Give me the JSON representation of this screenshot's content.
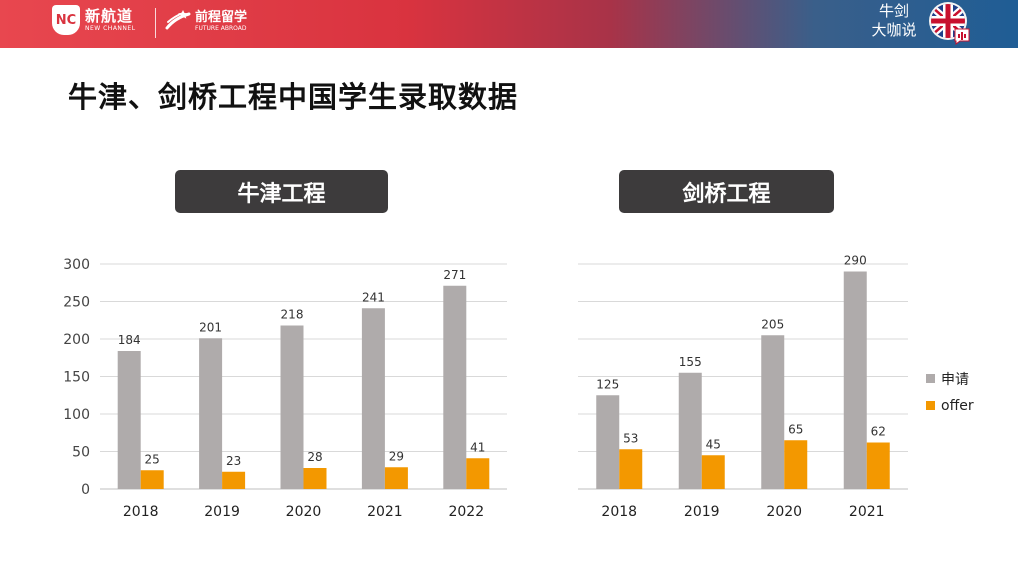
{
  "header": {
    "logo1_badge": "NC",
    "logo1_cn": "新航道",
    "logo1_en": "NEW CHANNEL",
    "logo2_cn": "前程留学",
    "logo2_en": "FUTURE ABROAD",
    "brand_line1": "牛剑",
    "brand_line2": "大咖说"
  },
  "page": {
    "title": "牛津、剑桥工程中国学生录取数据"
  },
  "colors": {
    "apply": "#afabab",
    "offer": "#f39800",
    "grid": "#d9d9d9",
    "label": "#333333"
  },
  "legend": {
    "apply": "申请",
    "offer": "offer"
  },
  "chart_data": [
    {
      "type": "bar",
      "title": "牛津工程",
      "categories": [
        "2018",
        "2019",
        "2020",
        "2021",
        "2022"
      ],
      "series": [
        {
          "name": "申请",
          "values": [
            184,
            201,
            218,
            241,
            271
          ]
        },
        {
          "name": "offer",
          "values": [
            25,
            23,
            28,
            29,
            41
          ]
        }
      ],
      "ylim": [
        0,
        300
      ],
      "yticks": [
        0,
        50,
        100,
        150,
        200,
        250,
        300
      ],
      "grid": true
    },
    {
      "type": "bar",
      "title": "剑桥工程",
      "categories": [
        "2018",
        "2019",
        "2020",
        "2021"
      ],
      "series": [
        {
          "name": "申请",
          "values": [
            125,
            155,
            205,
            290
          ]
        },
        {
          "name": "offer",
          "values": [
            53,
            45,
            65,
            62
          ]
        }
      ],
      "ylim": [
        0,
        300
      ],
      "grid": true,
      "legend": "right"
    }
  ]
}
